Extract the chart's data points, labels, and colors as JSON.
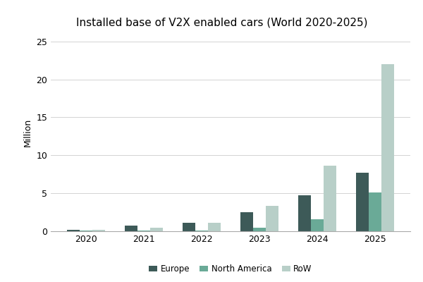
{
  "title": "Installed base of V2X enabled cars (World 2020-2025)",
  "ylabel": "Million",
  "years": [
    2020,
    2021,
    2022,
    2023,
    2024,
    2025
  ],
  "series": {
    "Europe": [
      0.2,
      0.7,
      1.1,
      2.5,
      4.7,
      7.7
    ],
    "North America": [
      0.05,
      0.05,
      0.1,
      0.45,
      1.55,
      5.1
    ],
    "RoW": [
      0.2,
      0.45,
      1.1,
      3.3,
      8.6,
      22.0
    ]
  },
  "colors": {
    "Europe": "#3d5a58",
    "North America": "#6aaa97",
    "RoW": "#b8cfc8"
  },
  "ylim": [
    0,
    26
  ],
  "yticks": [
    0,
    5,
    10,
    15,
    20,
    25
  ],
  "bar_width": 0.22,
  "background_color": "#ffffff",
  "title_fontsize": 11,
  "legend_fontsize": 8.5,
  "axis_fontsize": 9
}
